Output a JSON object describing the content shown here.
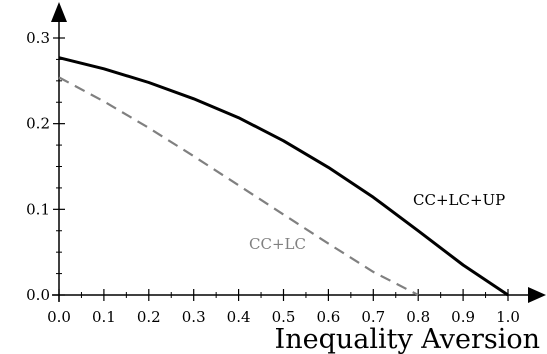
{
  "chart_data": {
    "type": "line",
    "xlabel": "Inequality Aversion",
    "ylabel": "",
    "xlim": [
      0.0,
      1.0
    ],
    "ylim": [
      0.0,
      0.3
    ],
    "x_ticks": [
      "0.0",
      "0.1",
      "0.2",
      "0.3",
      "0.4",
      "0.5",
      "0.6",
      "0.7",
      "0.8",
      "0.9",
      "1.0"
    ],
    "y_ticks": [
      "0.0",
      "0.1",
      "0.2",
      "0.3"
    ],
    "grid": false,
    "series": [
      {
        "name": "CC+LC+UP",
        "style": "solid",
        "color": "#000000",
        "x": [
          0.0,
          0.1,
          0.2,
          0.3,
          0.4,
          0.5,
          0.6,
          0.7,
          0.8,
          0.9,
          1.0
        ],
        "y": [
          0.277,
          0.264,
          0.248,
          0.229,
          0.207,
          0.18,
          0.149,
          0.114,
          0.075,
          0.035,
          0.0
        ]
      },
      {
        "name": "CC+LC",
        "style": "dashed",
        "color": "#808080",
        "x": [
          0.0,
          0.1,
          0.2,
          0.3,
          0.4,
          0.5,
          0.6,
          0.7,
          0.8
        ],
        "y": [
          0.254,
          0.226,
          0.195,
          0.162,
          0.128,
          0.094,
          0.06,
          0.027,
          0.0
        ]
      }
    ]
  }
}
